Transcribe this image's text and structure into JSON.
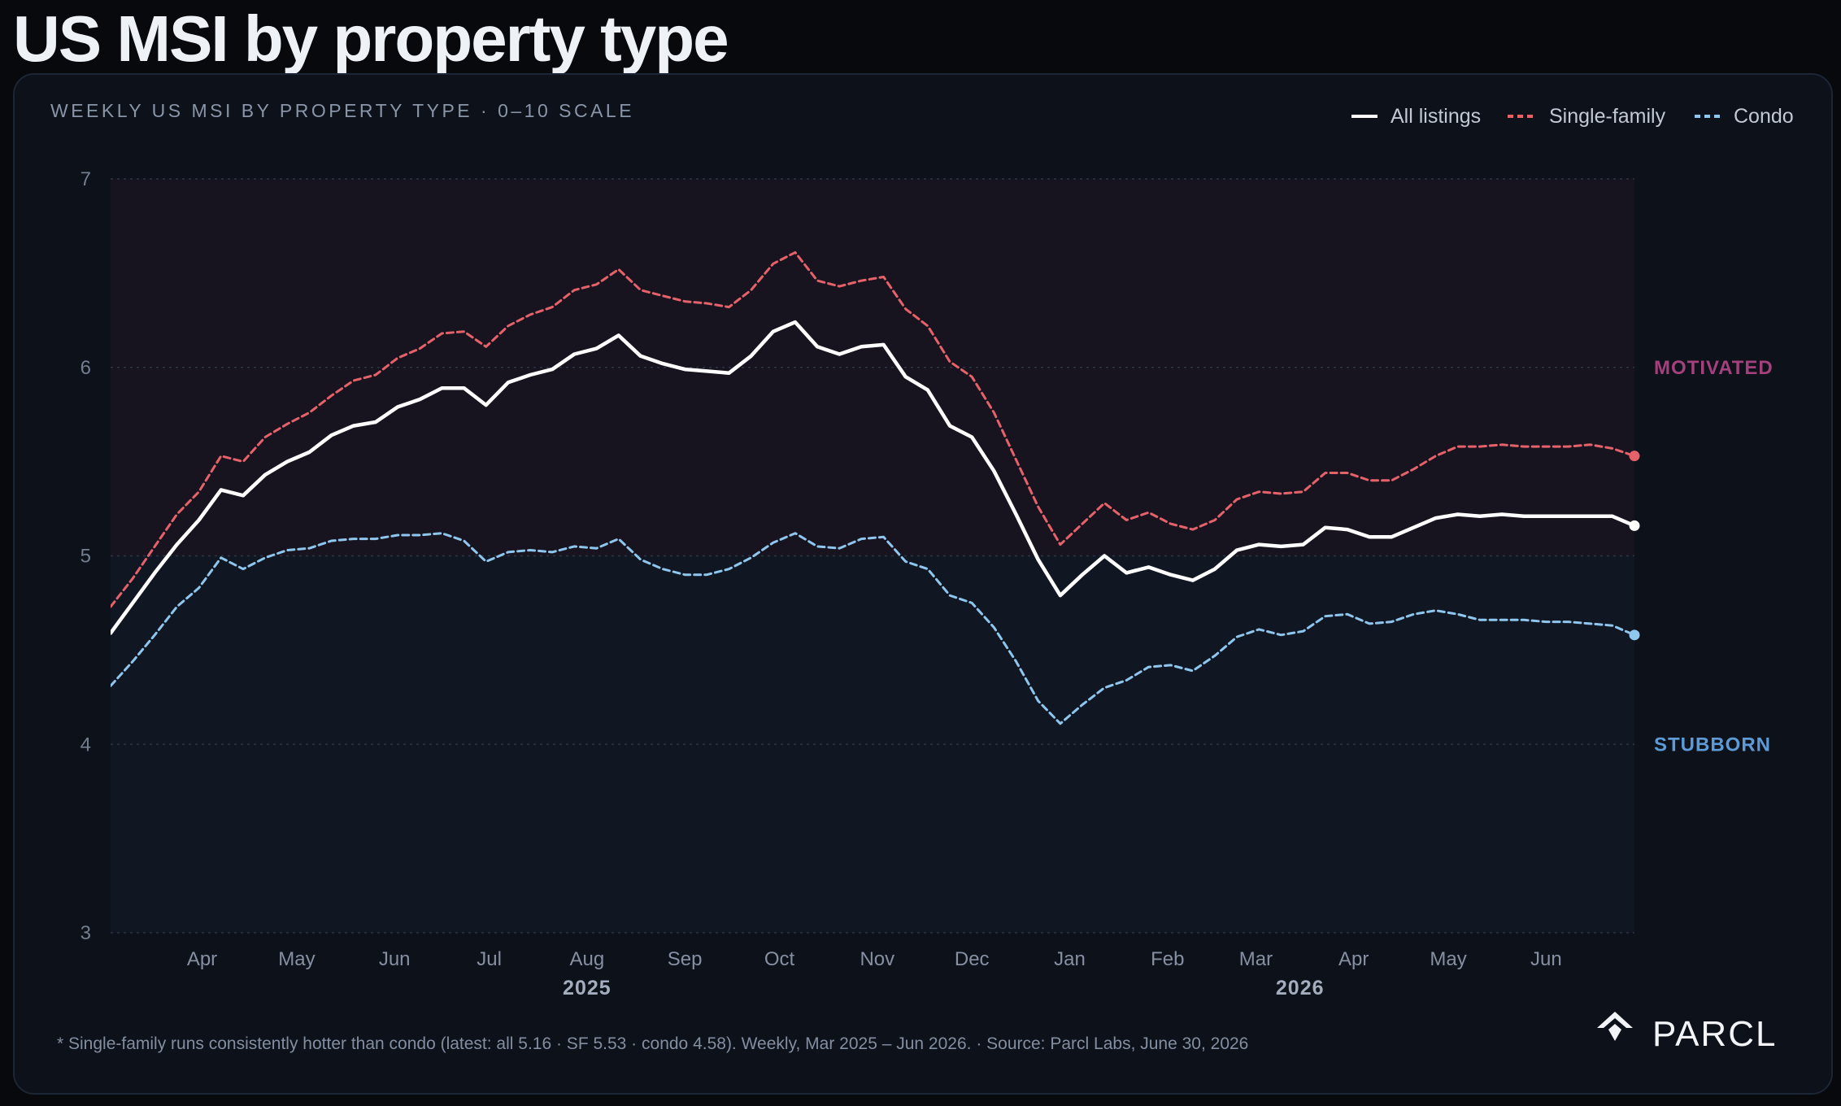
{
  "title": "US MSI by property type",
  "colors": {
    "background": "#07090d",
    "card": "#0c111a",
    "all_listings": "#ffffff",
    "single_family": "#e5626a",
    "condo": "#8ec6ee",
    "motivated": "#a4407c",
    "stubborn": "#5d9ad6"
  },
  "chart_data": {
    "type": "line",
    "subtitle": "WEEKLY US MSI BY PROPERTY TYPE · 0–10 SCALE",
    "ylim": [
      3,
      7
    ],
    "yticks": [
      "7",
      "6",
      "5",
      "4",
      "3"
    ],
    "grid": true,
    "legend_position": "top-right",
    "x_start": "2025-03-03",
    "x_end": "2026-06-29",
    "month_ticks": [
      {
        "label": "Apr",
        "date": "2025-04-01"
      },
      {
        "label": "May",
        "date": "2025-05-01"
      },
      {
        "label": "Jun",
        "date": "2025-06-01"
      },
      {
        "label": "Jul",
        "date": "2025-07-01"
      },
      {
        "label": "Aug",
        "date": "2025-08-01"
      },
      {
        "label": "Sep",
        "date": "2025-09-01"
      },
      {
        "label": "Oct",
        "date": "2025-10-01"
      },
      {
        "label": "Nov",
        "date": "2025-11-01"
      },
      {
        "label": "Dec",
        "date": "2025-12-01"
      },
      {
        "label": "Jan",
        "date": "2026-01-01"
      },
      {
        "label": "Feb",
        "date": "2026-02-01"
      },
      {
        "label": "Mar",
        "date": "2026-03-01"
      },
      {
        "label": "Apr",
        "date": "2026-04-01"
      },
      {
        "label": "May",
        "date": "2026-05-01"
      },
      {
        "label": "Jun",
        "date": "2026-06-01"
      }
    ],
    "year_labels": [
      {
        "label": "2025",
        "date": "2025-08-01"
      },
      {
        "label": "2026",
        "date": "2026-03-15"
      }
    ],
    "zones": [
      {
        "label": "MOTIVATED",
        "from": 5,
        "to": 7,
        "label_at": 6
      },
      {
        "label": "STUBBORN",
        "from": 3,
        "to": 5,
        "label_at": 4
      }
    ],
    "x": [
      "2025-03-03",
      "2025-03-10",
      "2025-03-17",
      "2025-03-24",
      "2025-03-31",
      "2025-04-07",
      "2025-04-14",
      "2025-04-21",
      "2025-04-28",
      "2025-05-05",
      "2025-05-12",
      "2025-05-19",
      "2025-05-26",
      "2025-06-02",
      "2025-06-09",
      "2025-06-16",
      "2025-06-23",
      "2025-06-30",
      "2025-07-07",
      "2025-07-14",
      "2025-07-21",
      "2025-07-28",
      "2025-08-04",
      "2025-08-11",
      "2025-08-18",
      "2025-08-25",
      "2025-09-01",
      "2025-09-08",
      "2025-09-15",
      "2025-09-22",
      "2025-09-29",
      "2025-10-06",
      "2025-10-13",
      "2025-10-20",
      "2025-10-27",
      "2025-11-03",
      "2025-11-10",
      "2025-11-17",
      "2025-11-24",
      "2025-12-01",
      "2025-12-08",
      "2025-12-15",
      "2025-12-22",
      "2025-12-29",
      "2026-01-05",
      "2026-01-12",
      "2026-01-19",
      "2026-01-26",
      "2026-02-02",
      "2026-02-09",
      "2026-02-16",
      "2026-02-23",
      "2026-03-02",
      "2026-03-09",
      "2026-03-16",
      "2026-03-23",
      "2026-03-30",
      "2026-04-06",
      "2026-04-13",
      "2026-04-20",
      "2026-04-27",
      "2026-05-04",
      "2026-05-11",
      "2026-05-18",
      "2026-05-25",
      "2026-06-01",
      "2026-06-08",
      "2026-06-15",
      "2026-06-22",
      "2026-06-29"
    ],
    "series": [
      {
        "name": "All listings",
        "style": "solid",
        "values": [
          4.59,
          4.75,
          4.91,
          5.06,
          5.19,
          5.35,
          5.32,
          5.43,
          5.5,
          5.55,
          5.64,
          5.69,
          5.71,
          5.79,
          5.83,
          5.89,
          5.89,
          5.8,
          5.92,
          5.96,
          5.99,
          6.07,
          6.1,
          6.17,
          6.06,
          6.02,
          5.99,
          5.98,
          5.97,
          6.06,
          6.19,
          6.24,
          6.11,
          6.07,
          6.11,
          6.12,
          5.95,
          5.88,
          5.69,
          5.63,
          5.45,
          5.22,
          4.98,
          4.79,
          4.9,
          5.0,
          4.91,
          4.94,
          4.9,
          4.87,
          4.93,
          5.03,
          5.06,
          5.05,
          5.06,
          5.15,
          5.14,
          5.1,
          5.1,
          5.15,
          5.2,
          5.22,
          5.21,
          5.22,
          5.21,
          5.21,
          5.21,
          5.21,
          5.21,
          5.16
        ]
      },
      {
        "name": "Single-family",
        "style": "dashed",
        "values": [
          4.73,
          4.88,
          5.05,
          5.22,
          5.34,
          5.53,
          5.5,
          5.63,
          5.7,
          5.76,
          5.85,
          5.93,
          5.96,
          6.05,
          6.1,
          6.18,
          6.19,
          6.11,
          6.22,
          6.28,
          6.32,
          6.41,
          6.44,
          6.52,
          6.41,
          6.38,
          6.35,
          6.34,
          6.32,
          6.41,
          6.55,
          6.61,
          6.46,
          6.43,
          6.46,
          6.48,
          6.31,
          6.22,
          6.03,
          5.95,
          5.76,
          5.51,
          5.26,
          5.06,
          5.17,
          5.28,
          5.19,
          5.23,
          5.17,
          5.14,
          5.19,
          5.3,
          5.34,
          5.33,
          5.34,
          5.44,
          5.44,
          5.4,
          5.4,
          5.46,
          5.53,
          5.58,
          5.58,
          5.59,
          5.58,
          5.58,
          5.58,
          5.59,
          5.57,
          5.53
        ]
      },
      {
        "name": "Condo",
        "style": "dashed",
        "values": [
          4.31,
          4.44,
          4.58,
          4.73,
          4.83,
          4.99,
          4.93,
          4.99,
          5.03,
          5.04,
          5.08,
          5.09,
          5.09,
          5.11,
          5.11,
          5.12,
          5.08,
          4.97,
          5.02,
          5.03,
          5.02,
          5.05,
          5.04,
          5.09,
          4.98,
          4.93,
          4.9,
          4.9,
          4.93,
          4.99,
          5.07,
          5.12,
          5.05,
          5.04,
          5.09,
          5.1,
          4.97,
          4.93,
          4.79,
          4.75,
          4.62,
          4.44,
          4.23,
          4.11,
          4.21,
          4.3,
          4.34,
          4.41,
          4.42,
          4.39,
          4.47,
          4.57,
          4.61,
          4.58,
          4.6,
          4.68,
          4.69,
          4.64,
          4.65,
          4.69,
          4.71,
          4.69,
          4.66,
          4.66,
          4.66,
          4.65,
          4.65,
          4.64,
          4.63,
          4.58
        ]
      }
    ]
  },
  "footnote": "* Single-family runs consistently hotter than condo (latest: all 5.16 · SF 5.53 · condo 4.58). Weekly, Mar 2025 – Jun 2026. · Source: Parcl Labs, June 30, 2026",
  "brand": {
    "name": "PARCL",
    "icon": "parcl-logo-icon"
  }
}
